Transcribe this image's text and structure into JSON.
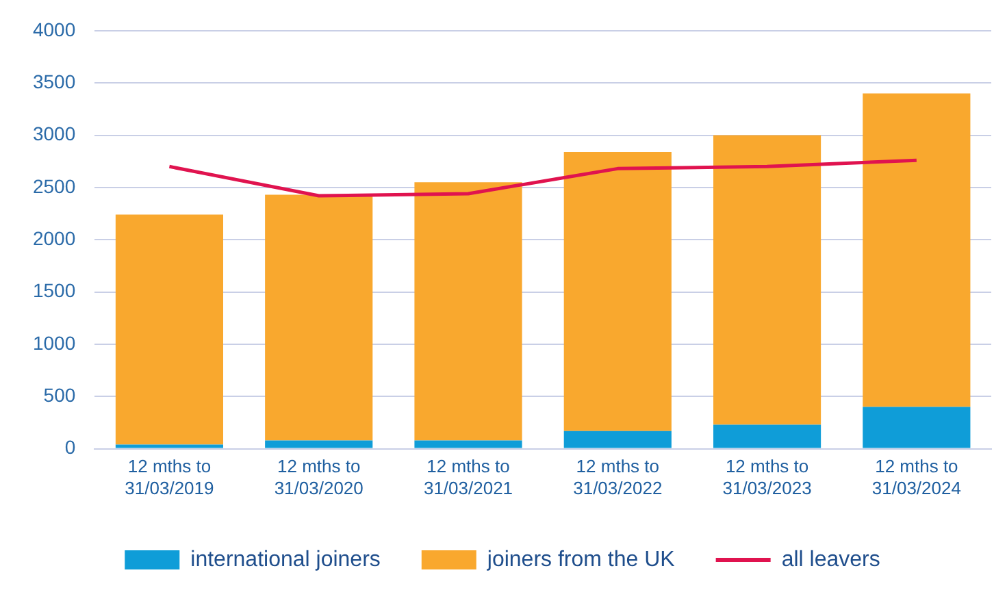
{
  "chart_data": {
    "type": "bar",
    "stacked": true,
    "categories": [
      "12 mths to 31/03/2019",
      "12 mths to 31/03/2020",
      "12 mths to 31/03/2021",
      "12 mths to 31/03/2022",
      "12 mths to 31/03/2023",
      "12 mths to 31/03/2024"
    ],
    "series": [
      {
        "name": "international joiners",
        "color": "#0f9dd8",
        "values": [
          40,
          80,
          80,
          170,
          230,
          400
        ]
      },
      {
        "name": "joiners from the UK",
        "color": "#f9a82e",
        "values": [
          2200,
          2350,
          2470,
          2670,
          2770,
          3000
        ]
      },
      {
        "name": "all leavers",
        "type": "line",
        "color": "#e0134f",
        "values": [
          2700,
          2420,
          2440,
          2680,
          2700,
          2760
        ]
      }
    ],
    "ylim": [
      0,
      4000
    ],
    "yticks": [
      0,
      500,
      1000,
      1500,
      2000,
      2500,
      3000,
      3500,
      4000
    ],
    "grid": "y",
    "legend": "bottom",
    "marker": "none",
    "line_style": "solid"
  }
}
